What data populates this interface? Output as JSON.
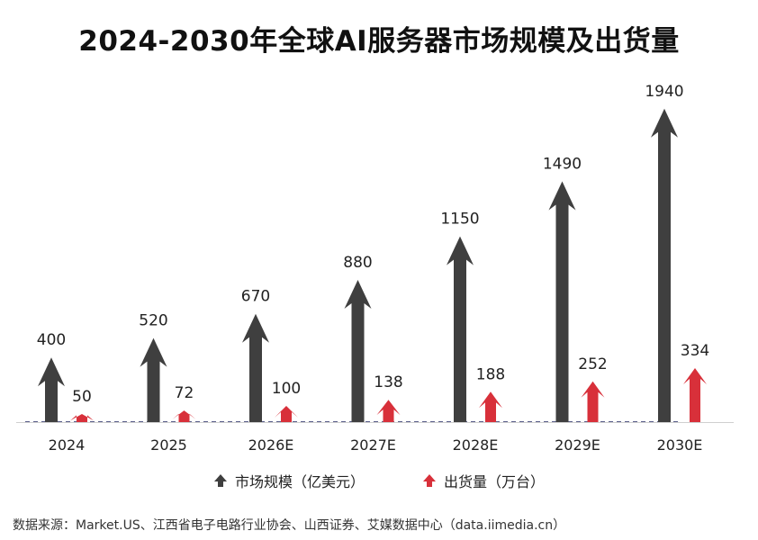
{
  "title": "2024-2030年全球AI服务器市场规模及出货量",
  "chart_data": {
    "type": "bar",
    "categories": [
      "2024",
      "2025",
      "2026E",
      "2027E",
      "2028E",
      "2029E",
      "2030E"
    ],
    "series": [
      {
        "name": "市场规模（亿美元）",
        "values": [
          400,
          520,
          670,
          880,
          1150,
          1490,
          1940
        ],
        "color": "#3f3f3f"
      },
      {
        "name": "出货量（万台）",
        "values": [
          50,
          72,
          100,
          138,
          188,
          252,
          334
        ],
        "color": "#d8303a"
      }
    ],
    "ylim": [
      0,
      2000
    ],
    "legend": "bottom",
    "grid": false
  },
  "source": "数据来源：Market.US、江西省电子电路行业协会、山西证券、艾媒数据中心（data.iimedia.cn）"
}
